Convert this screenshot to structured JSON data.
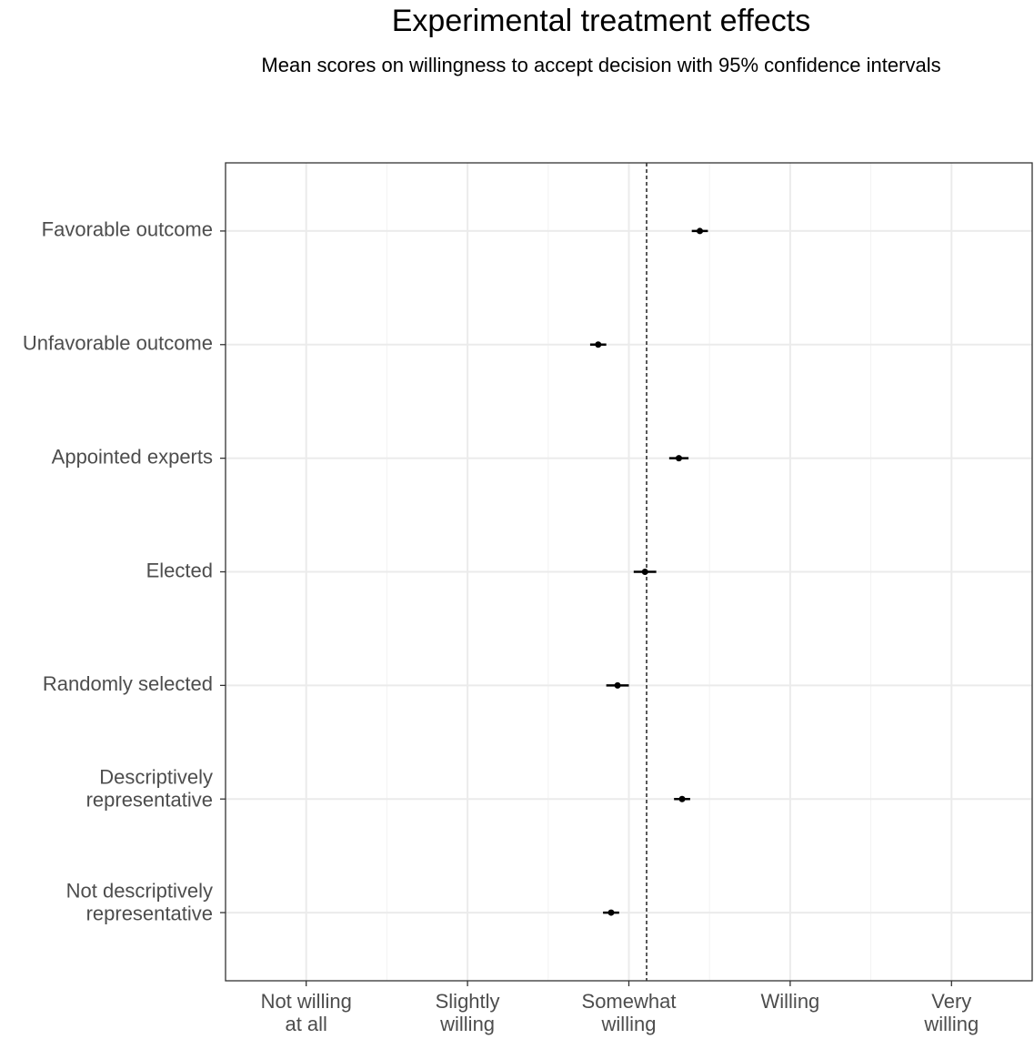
{
  "chart_data": {
    "type": "dotplot",
    "title": "Experimental treatment effects",
    "subtitle": "Mean scores on willingness to accept decision with 95% confidence intervals",
    "categories": [
      "Favorable outcome",
      "Unfavorable outcome",
      "Appointed experts",
      "Elected",
      "Randomly selected",
      "Descriptively\nrepresentative",
      "Not descriptively\nrepresentative"
    ],
    "values": [
      3.44,
      2.81,
      3.31,
      3.1,
      2.93,
      3.33,
      2.89
    ],
    "errors": [
      0.05,
      0.05,
      0.06,
      0.07,
      0.07,
      0.05,
      0.05
    ],
    "color": "#000000",
    "xlim": [
      0.5,
      5.5
    ],
    "xticks": [
      {
        "value": 1,
        "label": "Not willing\nat all"
      },
      {
        "value": 2,
        "label": "Slightly\nwilling"
      },
      {
        "value": 3,
        "label": "Somewhat\nwilling"
      },
      {
        "value": 4,
        "label": "Willing"
      },
      {
        "value": 5,
        "label": "Very\nwilling"
      }
    ],
    "minor_xticks": [
      1.5,
      2.5,
      3.5,
      4.5
    ],
    "reference_line": 3.11,
    "grid": true
  }
}
